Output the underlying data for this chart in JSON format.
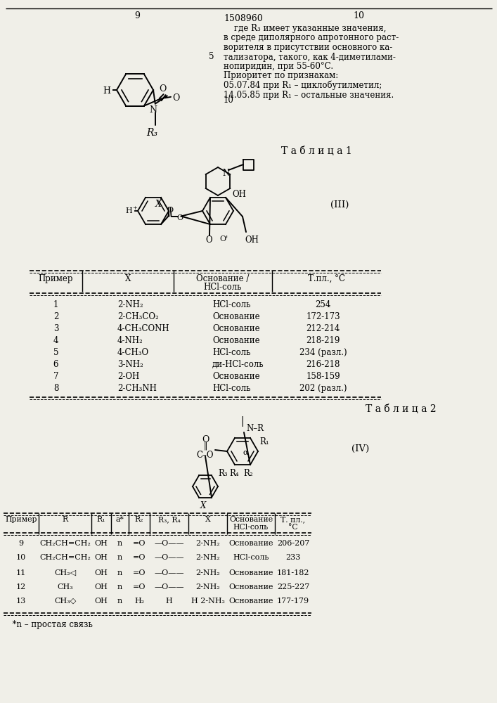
{
  "page_num_left": "9",
  "page_num_right": "10",
  "patent_num": "1508960",
  "text_lines": [
    "    где R₃ имеет указанные значения,",
    "в среде диполярного апротонного раст-",
    "ворителя в присутствии основного ка-",
    "тализатора, такого, как 4-диметилами-",
    "нопиридин, при 55-60°C.",
    "Приоритет по признакам:",
    "05.07.84 при R₁ – циклобутилметил;",
    "14.05.85 при R₁ – остальные значения."
  ],
  "table1_title": "Т а б л и ц а 1",
  "table1_label": "(III)",
  "table1_header_row1": [
    "Пример",
    "X",
    "Основание /",
    "Т.пл., °C"
  ],
  "table1_header_row2": [
    "",
    "",
    "HCl-соль",
    ""
  ],
  "table1_rows": [
    [
      "1",
      "2-NH₂",
      "HCl-соль",
      "254"
    ],
    [
      "2",
      "2-CH₃CO₂",
      "Основание",
      "172-173"
    ],
    [
      "3",
      "4-CH₃CONH",
      "Основание",
      "212-214"
    ],
    [
      "4",
      "4-NH₂",
      "Основание",
      "218-219"
    ],
    [
      "5",
      "4-CH₃O",
      "HCl-соль",
      "234 (разл.)"
    ],
    [
      "6",
      "3-NH₂",
      "ди-HCl-соль",
      "216-218"
    ],
    [
      "7",
      "2-OH",
      "Основание",
      "158-159"
    ],
    [
      "8",
      "2-CH₃NH",
      "HCl-соль",
      "202 (разл.)"
    ]
  ],
  "table2_title": "Т а б л и ц а 2",
  "table2_label": "(IV)",
  "table2_header_row1": [
    "Пример",
    "R",
    "R₁",
    "a*",
    "R₂",
    "R₃, R₄",
    "X",
    "Основание",
    "Т. пл.,"
  ],
  "table2_header_row2": [
    "",
    "",
    "",
    "",
    "",
    "",
    "",
    "HCl-соль",
    "°C"
  ],
  "table2_rows": [
    [
      "9",
      "CH₂CH=CH₂",
      "OH",
      "n",
      "=O",
      "—O——",
      "2-NH₂",
      "Основание",
      "206-207"
    ],
    [
      "10",
      "CH₂CH=CH₂",
      "OH",
      "n",
      "=O",
      "—O——",
      "2-NH₂",
      "HCl-соль",
      "233"
    ],
    [
      "11",
      "CH₂◁",
      "OH",
      "n",
      "=O",
      "—O——",
      "2-NH₂",
      "Основание",
      "181-182"
    ],
    [
      "12",
      "CH₃",
      "OH",
      "n",
      "=O",
      "—O——",
      "2-NH₂",
      "Основание",
      "225-227"
    ],
    [
      "13",
      "CH₃◇",
      "OH",
      "n",
      "H₂",
      "H",
      "H 2-NH₂",
      "Основание",
      "177-179"
    ]
  ],
  "footnote": "  *n – простая связь",
  "bg_color": "#f0efe8"
}
